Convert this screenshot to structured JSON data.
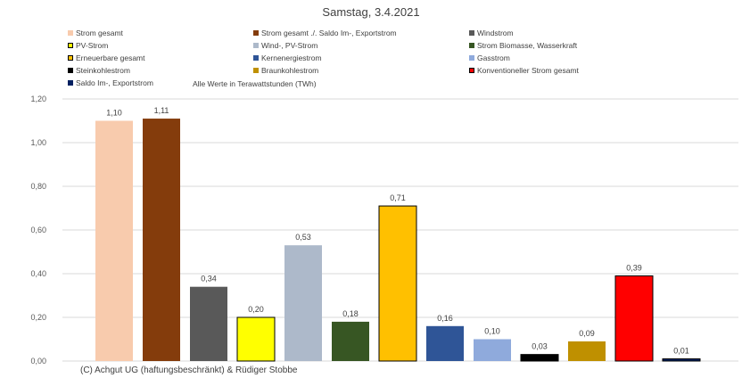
{
  "chart_data": {
    "type": "bar",
    "title": "Samstag, 3.4.2021",
    "note": "Alle Werte in Terawattstunden (TWh)",
    "copyright": "(C) Achgut UG (haftungsbeschränkt) & Rüdiger Stobbe",
    "ylim": [
      0,
      1.2
    ],
    "yticks": [
      "0,00",
      "0,20",
      "0,40",
      "0,60",
      "0,80",
      "1,00",
      "1,20"
    ],
    "categories": [
      "Strom gesamt",
      "Strom gesamt ./. Saldo Im-, Exportstrom",
      "Windstrom",
      "PV-Strom",
      "Wind-, PV-Strom",
      "Strom Biomasse, Wasserkraft",
      "Erneuerbare gesamt",
      "Kernenergiestrom",
      "Gasstrom",
      "Steinkohlestrom",
      "Braunkohlestrom",
      "Konventioneller Strom gesamt",
      "Saldo Im-, Exportstrom"
    ],
    "values": [
      1.1,
      1.11,
      0.34,
      0.2,
      0.53,
      0.18,
      0.71,
      0.16,
      0.1,
      0.03,
      0.09,
      0.39,
      0.01
    ],
    "labels": [
      "1,10",
      "1,11",
      "0,34",
      "0,20",
      "0,53",
      "0,18",
      "0,71",
      "0,16",
      "0,10",
      "0,03",
      "0,09",
      "0,39",
      "0,01"
    ],
    "colors": [
      "#F8CBAD",
      "#843C0C",
      "#595959",
      "#FFFF00",
      "#ADB9CA",
      "#375623",
      "#FFC000",
      "#2F5597",
      "#8FAADC",
      "#000000",
      "#BF9000",
      "#FF0000",
      "#002060"
    ],
    "grid": true,
    "legend_position": "top"
  }
}
